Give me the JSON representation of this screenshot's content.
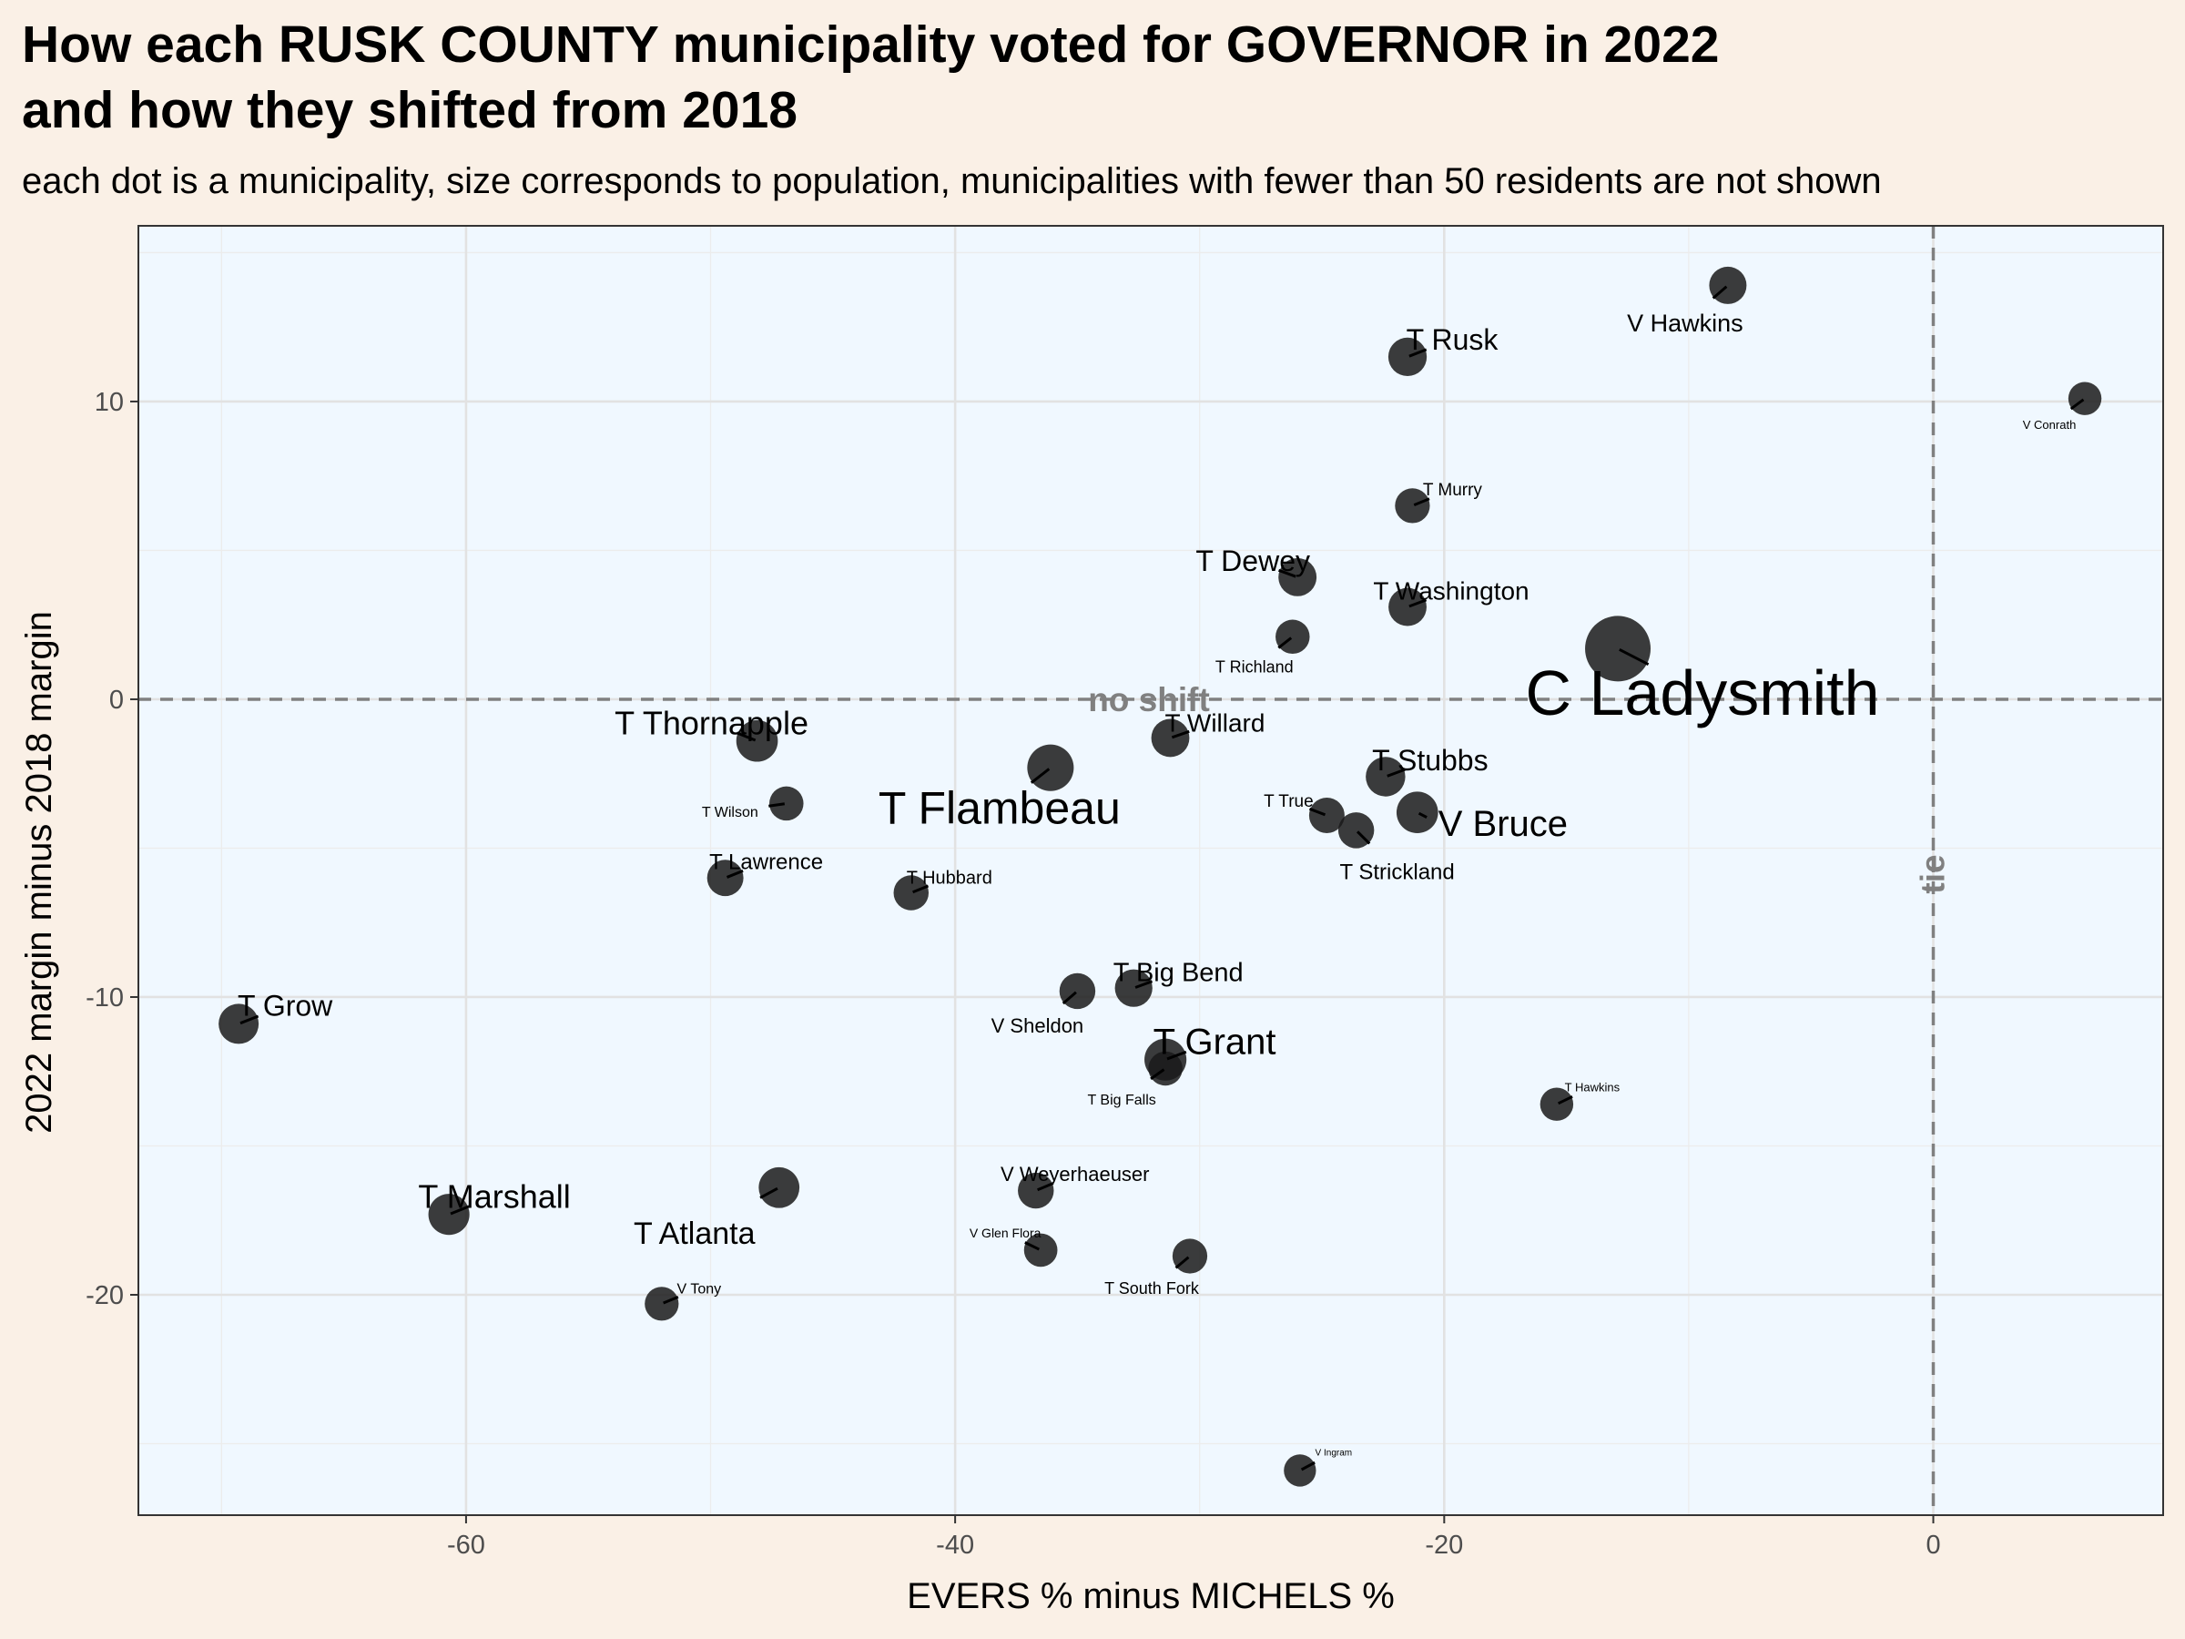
{
  "title_line1": "How each RUSK COUNTY municipality voted for GOVERNOR in 2022",
  "title_line2": "and how they shifted from 2018",
  "subtitle": "each dot is a municipality, size corresponds to population, municipalities with fewer than 50 residents are not shown",
  "colors": {
    "background": "#faf0e6",
    "panel": "#f0f8ff",
    "grid": "#e6e6e6",
    "points": "#1a1a1a",
    "reference_lines": "#808080"
  },
  "chart_data": {
    "type": "scatter",
    "xlabel": "EVERS % minus MICHELS %",
    "ylabel": "2022 margin minus 2018 margin",
    "xlim": [
      -73.4,
      9.4
    ],
    "ylim": [
      -27.4,
      15.9
    ],
    "xticks": [
      -60,
      -40,
      -20,
      0
    ],
    "yticks": [
      10,
      0,
      -10,
      -20
    ],
    "grid": true,
    "reference_lines": [
      {
        "axis": "y",
        "value": 0,
        "label": "no shift"
      },
      {
        "axis": "x",
        "value": 0,
        "label": "tie"
      }
    ],
    "points": [
      {
        "name": "C Ladysmith",
        "x": -12.9,
        "y": 1.7,
        "size": 3
      },
      {
        "name": "T Flambeau",
        "x": -36.1,
        "y": -2.3,
        "size": 1.07
      },
      {
        "name": "T Thornapple",
        "x": -48.1,
        "y": -1.4,
        "size": 0.73
      },
      {
        "name": "T Grant",
        "x": -31.4,
        "y": -12.1,
        "size": 0.76
      },
      {
        "name": "V Bruce",
        "x": -21.1,
        "y": -3.8,
        "size": 0.73
      },
      {
        "name": "T Marshall",
        "x": -60.7,
        "y": -17.3,
        "size": 0.7
      },
      {
        "name": "T Atlanta",
        "x": -47.2,
        "y": -16.4,
        "size": 0.68
      },
      {
        "name": "T Grow",
        "x": -69.3,
        "y": -10.9,
        "size": 0.64
      },
      {
        "name": "T Stubbs",
        "x": -22.4,
        "y": -2.6,
        "size": 0.61
      },
      {
        "name": "T Rusk",
        "x": -21.5,
        "y": 11.5,
        "size": 0.55
      },
      {
        "name": "T Willard",
        "x": -31.2,
        "y": -1.3,
        "size": 0.53
      },
      {
        "name": "T Dewey",
        "x": -26.0,
        "y": 4.1,
        "size": 0.53
      },
      {
        "name": "T Washington",
        "x": -21.5,
        "y": 3.1,
        "size": 0.53
      },
      {
        "name": "V Hawkins",
        "x": -8.4,
        "y": 13.9,
        "size": 0.49
      },
      {
        "name": "T Big Bend",
        "x": -32.7,
        "y": -9.7,
        "size": 0.5
      },
      {
        "name": "T Lawrence",
        "x": -49.4,
        "y": -6.0,
        "size": 0.44
      },
      {
        "name": "T Strickland",
        "x": -23.6,
        "y": -4.4,
        "size": 0.42
      },
      {
        "name": "V Sheldon",
        "x": -35.0,
        "y": -9.8,
        "size": 0.42
      },
      {
        "name": "V Weyerhaeuser",
        "x": -36.7,
        "y": -16.5,
        "size": 0.42
      },
      {
        "name": "T True",
        "x": -24.8,
        "y": -3.9,
        "size": 0.4
      },
      {
        "name": "T Hubbard",
        "x": -41.8,
        "y": -6.5,
        "size": 0.38
      },
      {
        "name": "T Murry",
        "x": -21.3,
        "y": 6.5,
        "size": 0.37
      },
      {
        "name": "T South Fork",
        "x": -30.4,
        "y": -18.7,
        "size": 0.37
      },
      {
        "name": "T Richland",
        "x": -26.2,
        "y": 2.1,
        "size": 0.34
      },
      {
        "name": "T Big Falls",
        "x": -31.4,
        "y": -12.4,
        "size": 0.34
      },
      {
        "name": "T Wilson",
        "x": -46.9,
        "y": -3.5,
        "size": 0.34
      },
      {
        "name": "V Tony",
        "x": -52.0,
        "y": -20.3,
        "size": 0.33
      },
      {
        "name": "V Glen Flora",
        "x": -36.5,
        "y": -18.5,
        "size": 0.31
      },
      {
        "name": "T Hawkins",
        "x": -15.4,
        "y": -13.6,
        "size": 0.3
      },
      {
        "name": "V Conrath",
        "x": 6.2,
        "y": 10.1,
        "size": 0.3
      },
      {
        "name": "V Ingram",
        "x": -25.9,
        "y": -25.9,
        "size": 0.26
      }
    ]
  }
}
